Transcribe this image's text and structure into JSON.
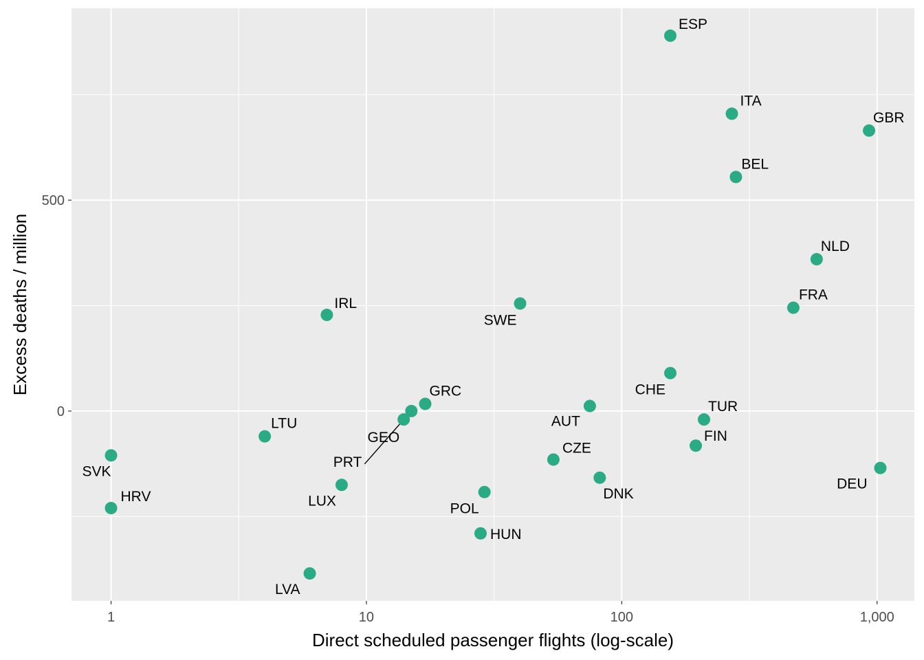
{
  "chart_data": {
    "type": "scatter",
    "xlabel": "Direct scheduled passenger flights (log-scale)",
    "ylabel": "Excess deaths / million",
    "x_scale": "log10",
    "xlim": [
      0.7,
      1400
    ],
    "ylim": [
      -450,
      955
    ],
    "x_ticks": [
      {
        "value": 1,
        "label": "1"
      },
      {
        "value": 10,
        "label": "10"
      },
      {
        "value": 100,
        "label": "100"
      },
      {
        "value": 1000,
        "label": "1,000"
      }
    ],
    "y_ticks": [
      {
        "value": 0,
        "label": "0"
      },
      {
        "value": 500,
        "label": "500"
      }
    ],
    "grid": true,
    "point_color": "#2AAA85",
    "panel_color": "#EBEBEB",
    "points": [
      {
        "label": "ESP",
        "x": 155,
        "y": 890,
        "lx": 12,
        "ly": -10,
        "anchor": "start"
      },
      {
        "label": "ITA",
        "x": 270,
        "y": 705,
        "lx": 12,
        "ly": -12,
        "anchor": "start"
      },
      {
        "label": "GBR",
        "x": 930,
        "y": 665,
        "lx": 6,
        "ly": -12,
        "anchor": "start"
      },
      {
        "label": "BEL",
        "x": 280,
        "y": 555,
        "lx": 8,
        "ly": -12,
        "anchor": "start"
      },
      {
        "label": "NLD",
        "x": 580,
        "y": 360,
        "lx": 6,
        "ly": -12,
        "anchor": "start"
      },
      {
        "label": "FRA",
        "x": 470,
        "y": 245,
        "lx": 8,
        "ly": -12,
        "anchor": "start"
      },
      {
        "label": "SWE",
        "x": 40,
        "y": 255,
        "lx": -5,
        "ly": 31,
        "anchor": "end"
      },
      {
        "label": "IRL",
        "x": 7,
        "y": 228,
        "lx": 11,
        "ly": -10,
        "anchor": "start"
      },
      {
        "label": "CHE",
        "x": 155,
        "y": 90,
        "lx": -7,
        "ly": 31,
        "anchor": "end"
      },
      {
        "label": "AUT",
        "x": 75,
        "y": 12,
        "lx": -14,
        "ly": 29,
        "anchor": "end"
      },
      {
        "label": "TUR",
        "x": 210,
        "y": -20,
        "lx": 6,
        "ly": -12,
        "anchor": "start"
      },
      {
        "label": "GRC",
        "x": 17,
        "y": 17,
        "lx": 6,
        "ly": -12,
        "anchor": "start"
      },
      {
        "label": "GEO",
        "x": 14,
        "y": -20,
        "lx": -6,
        "ly": 33,
        "anchor": "end"
      },
      {
        "label": "PRT",
        "x": 15,
        "y": 0,
        "lx": -72,
        "ly": 81,
        "anchor": "end",
        "segment": true
      },
      {
        "label": "LTU",
        "x": 4,
        "y": -60,
        "lx": 9,
        "ly": -12,
        "anchor": "start"
      },
      {
        "label": "FIN",
        "x": 195,
        "y": -82,
        "lx": 12,
        "ly": -7,
        "anchor": "start"
      },
      {
        "label": "CZE",
        "x": 54,
        "y": -115,
        "lx": 13,
        "ly": -10,
        "anchor": "start"
      },
      {
        "label": "SVK",
        "x": 1,
        "y": -105,
        "lx": 0,
        "ly": 30,
        "anchor": "end"
      },
      {
        "label": "DNK",
        "x": 82,
        "y": -158,
        "lx": 5,
        "ly": 30,
        "anchor": "start"
      },
      {
        "label": "LUX",
        "x": 8,
        "y": -175,
        "lx": -8,
        "ly": 30,
        "anchor": "end"
      },
      {
        "label": "POL",
        "x": 29,
        "y": -192,
        "lx": -8,
        "ly": 31,
        "anchor": "end"
      },
      {
        "label": "DEU",
        "x": 1030,
        "y": -135,
        "lx": -19,
        "ly": 30,
        "anchor": "end"
      },
      {
        "label": "HRV",
        "x": 1,
        "y": -230,
        "lx": 14,
        "ly": -10,
        "anchor": "start"
      },
      {
        "label": "HUN",
        "x": 28,
        "y": -290,
        "lx": 14,
        "ly": 8,
        "anchor": "start"
      },
      {
        "label": "LVA",
        "x": 6,
        "y": -385,
        "lx": -14,
        "ly": 30,
        "anchor": "end"
      }
    ]
  }
}
